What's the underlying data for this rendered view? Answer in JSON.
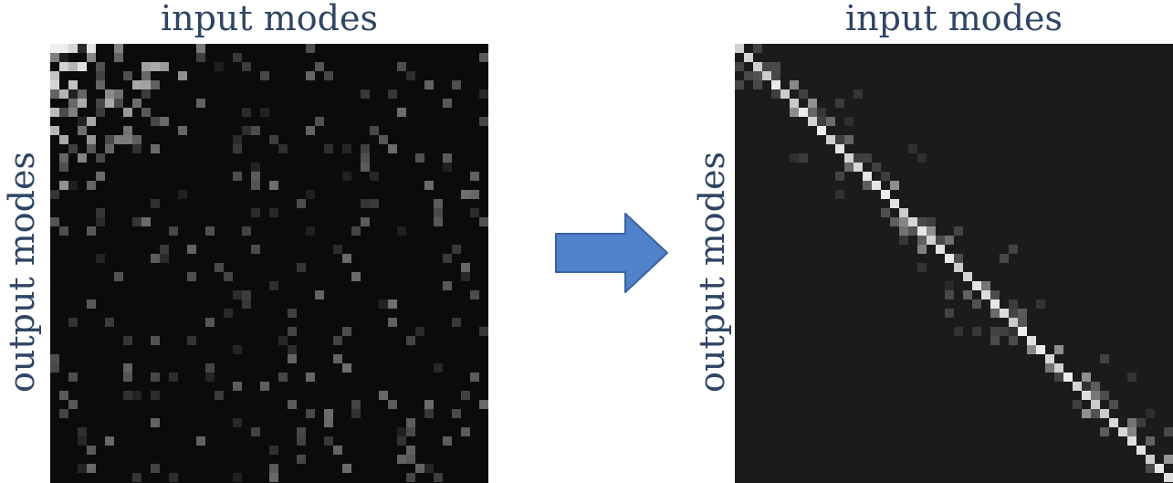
{
  "left_panel": {
    "title": "input modes",
    "ylabel": "output modes",
    "background": "#0b0b0b"
  },
  "right_panel": {
    "title": "input modes",
    "ylabel": "output modes",
    "background": "#1b1b1b"
  },
  "arrow": {
    "fill": "#4f82c9",
    "stroke": "#3a62a0"
  },
  "text_color": "#2f4564"
}
